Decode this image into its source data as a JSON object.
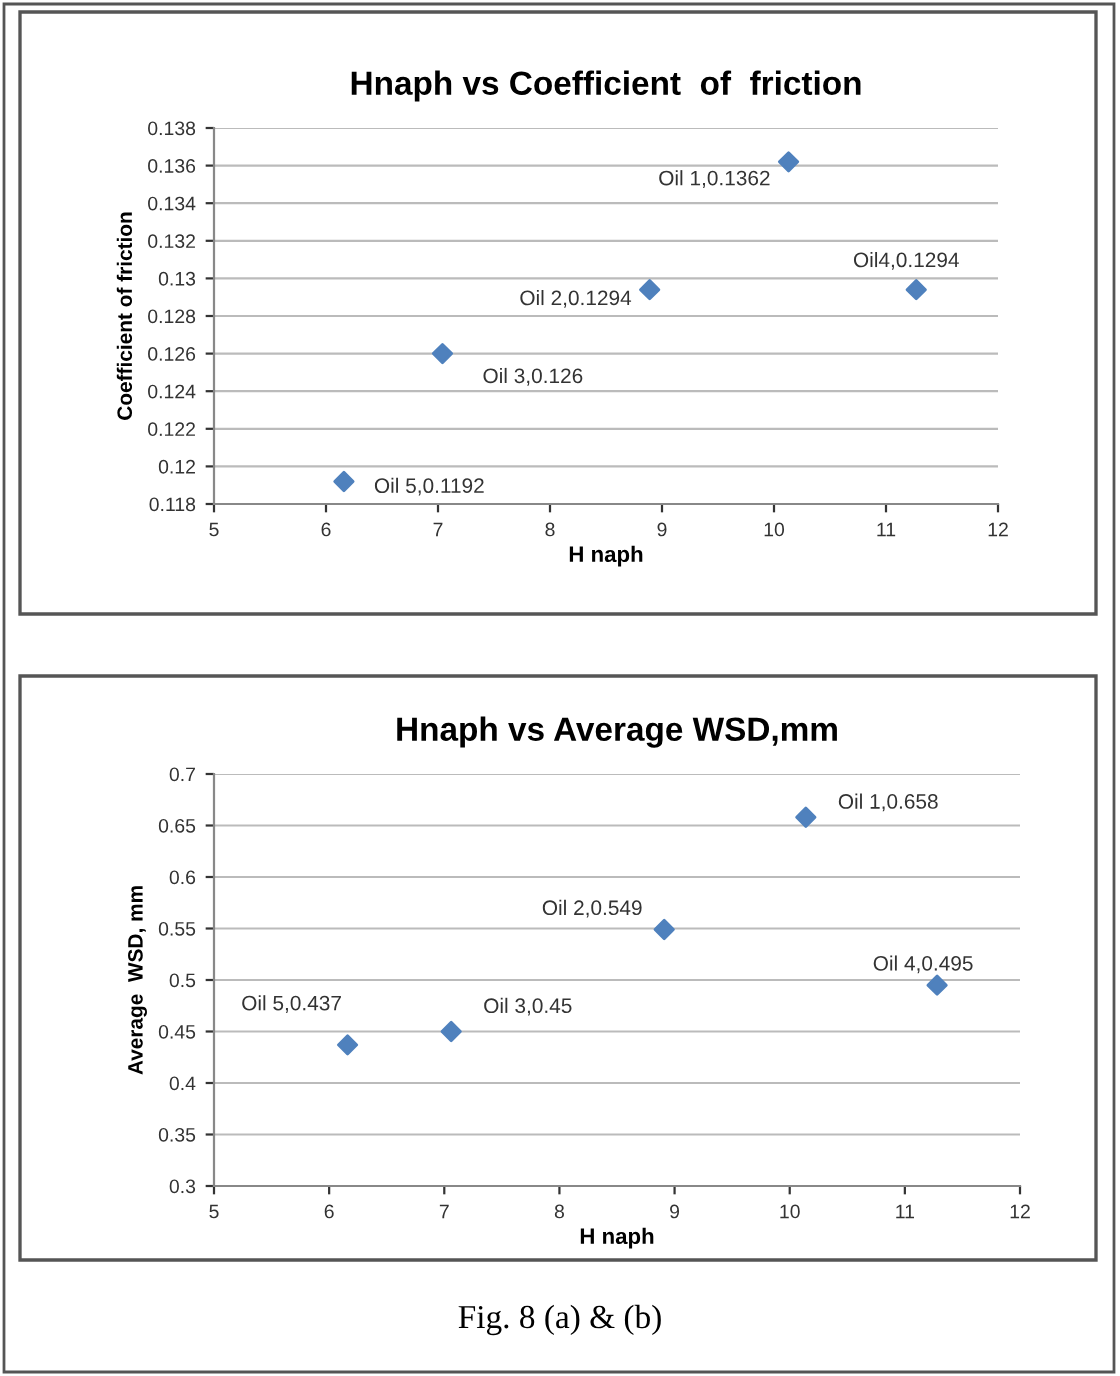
{
  "chart_data": [
    {
      "type": "scatter",
      "title": "Hnaph vs Coefficient  of  friction",
      "xlabel": "H naph",
      "ylabel": "Coefficient of friction",
      "x": [
        6.16,
        7.04,
        8.89,
        10.13,
        11.27
      ],
      "values": [
        0.1192,
        0.126,
        0.1294,
        0.1362,
        0.1294
      ],
      "color": "#4f81bd",
      "xlim": [
        5,
        12
      ],
      "xticks": [
        5,
        6,
        7,
        8,
        9,
        10,
        11,
        12
      ],
      "ylim": [
        0.118,
        0.138
      ],
      "yticks": [
        0.118,
        0.12,
        0.122,
        0.124,
        0.126,
        0.128,
        0.13,
        0.132,
        0.134,
        0.136,
        0.138
      ],
      "grid": "y",
      "marker": "diamond",
      "annotations": [
        {
          "text": "Oil 5,0.1192",
          "x": 6.16,
          "y": 0.1192
        },
        {
          "text": "Oil 3,0.126",
          "x": 7.04,
          "y": 0.126
        },
        {
          "text": "Oil 2,0.1294",
          "x": 8.89,
          "y": 0.1294
        },
        {
          "text": "Oil 1,0.1362",
          "x": 10.13,
          "y": 0.1362
        },
        {
          "text": "Oil4,0.1294",
          "x": 11.27,
          "y": 0.1294
        }
      ]
    },
    {
      "type": "scatter",
      "title": "Hnaph vs Average WSD,mm",
      "xlabel": "H naph",
      "ylabel": "Average  WSD, mm",
      "x": [
        6.16,
        7.06,
        8.91,
        10.14,
        11.28
      ],
      "values": [
        0.437,
        0.45,
        0.549,
        0.658,
        0.495
      ],
      "color": "#4f81bd",
      "xlim": [
        5,
        12
      ],
      "xticks": [
        5,
        6,
        7,
        8,
        9,
        10,
        11,
        12
      ],
      "ylim": [
        0.3,
        0.7
      ],
      "yticks": [
        0.3,
        0.35,
        0.4,
        0.45,
        0.5,
        0.55,
        0.6,
        0.65,
        0.7
      ],
      "grid": "y",
      "marker": "diamond",
      "annotations": [
        {
          "text": "Oil 5,0.437",
          "x": 6.16,
          "y": 0.437
        },
        {
          "text": "Oil 3,0.45",
          "x": 7.06,
          "y": 0.45
        },
        {
          "text": "Oil 2,0.549",
          "x": 8.91,
          "y": 0.549
        },
        {
          "text": "Oil 1,0.658",
          "x": 10.14,
          "y": 0.658
        },
        {
          "text": "Oil 4,0.495",
          "x": 11.28,
          "y": 0.495
        },
        "Fig. 8 (a) & (b)"
      ]
    }
  ]
}
